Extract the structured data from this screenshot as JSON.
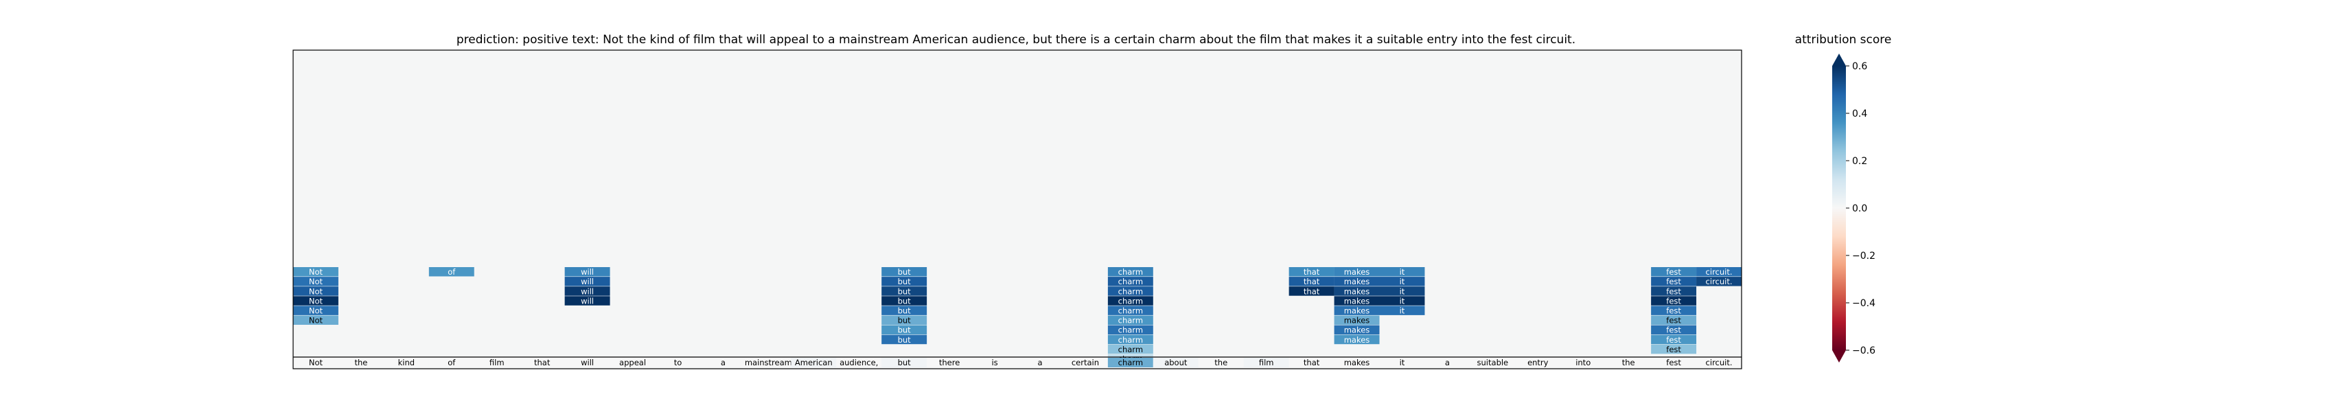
{
  "chart_data": {
    "type": "heatmap",
    "title": "prediction:  positive     text:  Not the kind of film that will appeal to a mainstream American audience, but there is a certain charm about the film that makes it a suitable entry into the fest circuit.",
    "tokens": [
      "Not",
      "the",
      "kind",
      "of",
      "film",
      "that",
      "will",
      "appeal",
      "to",
      "a",
      "mainstream",
      "American",
      "audience,",
      "but",
      "there",
      "is",
      "a",
      "certain",
      "charm",
      "about",
      "the",
      "film",
      "that",
      "makes",
      "it",
      "a",
      "suitable",
      "entry",
      "into",
      "the",
      "fest",
      "circuit."
    ],
    "n_rows": 12,
    "bottom_row_scores": [
      0.0,
      0.0,
      0.0,
      0.0,
      0.0,
      0.0,
      0.0,
      0.0,
      0.0,
      0.0,
      0.0,
      0.02,
      0.0,
      0.02,
      0.0,
      0.0,
      0.0,
      0.0,
      0.3,
      0.02,
      0.0,
      0.02,
      0.0,
      0.0,
      0.0,
      0.0,
      0.0,
      0.0,
      0.0,
      0.0,
      0.0,
      0.0
    ],
    "highlighted_cells": [
      {
        "token": "Not",
        "col": 0,
        "row": 0,
        "score": 0.35
      },
      {
        "token": "Not",
        "col": 0,
        "row": 1,
        "score": 0.45
      },
      {
        "token": "Not",
        "col": 0,
        "row": 2,
        "score": 0.5
      },
      {
        "token": "Not",
        "col": 0,
        "row": 3,
        "score": 0.62
      },
      {
        "token": "Not",
        "col": 0,
        "row": 4,
        "score": 0.45
      },
      {
        "token": "Not",
        "col": 0,
        "row": 5,
        "score": 0.3
      },
      {
        "token": "of",
        "col": 3,
        "row": 0,
        "score": 0.35
      },
      {
        "token": "will",
        "col": 6,
        "row": 0,
        "score": 0.4
      },
      {
        "token": "will",
        "col": 6,
        "row": 1,
        "score": 0.5
      },
      {
        "token": "will",
        "col": 6,
        "row": 2,
        "score": 0.58
      },
      {
        "token": "will",
        "col": 6,
        "row": 3,
        "score": 0.62
      },
      {
        "token": "but",
        "col": 13,
        "row": 0,
        "score": 0.4
      },
      {
        "token": "but",
        "col": 13,
        "row": 1,
        "score": 0.5
      },
      {
        "token": "but",
        "col": 13,
        "row": 2,
        "score": 0.55
      },
      {
        "token": "but",
        "col": 13,
        "row": 3,
        "score": 0.62
      },
      {
        "token": "but",
        "col": 13,
        "row": 4,
        "score": 0.45
      },
      {
        "token": "but",
        "col": 13,
        "row": 5,
        "score": 0.3
      },
      {
        "token": "but",
        "col": 13,
        "row": 6,
        "score": 0.35
      },
      {
        "token": "but",
        "col": 13,
        "row": 7,
        "score": 0.45
      },
      {
        "token": "charm",
        "col": 18,
        "row": 0,
        "score": 0.4
      },
      {
        "token": "charm",
        "col": 18,
        "row": 1,
        "score": 0.5
      },
      {
        "token": "charm",
        "col": 18,
        "row": 2,
        "score": 0.5
      },
      {
        "token": "charm",
        "col": 18,
        "row": 3,
        "score": 0.62
      },
      {
        "token": "charm",
        "col": 18,
        "row": 4,
        "score": 0.45
      },
      {
        "token": "charm",
        "col": 18,
        "row": 5,
        "score": 0.35
      },
      {
        "token": "charm",
        "col": 18,
        "row": 6,
        "score": 0.45
      },
      {
        "token": "charm",
        "col": 18,
        "row": 7,
        "score": 0.35
      },
      {
        "token": "charm",
        "col": 18,
        "row": 8,
        "score": 0.25
      },
      {
        "token": "charm",
        "col": 18,
        "row": 9,
        "score": 0.15
      },
      {
        "token": "that",
        "col": 22,
        "row": 0,
        "score": 0.38
      },
      {
        "token": "that",
        "col": 22,
        "row": 1,
        "score": 0.5
      },
      {
        "token": "that",
        "col": 22,
        "row": 2,
        "score": 0.62
      },
      {
        "token": "makes",
        "col": 23,
        "row": 0,
        "score": 0.4
      },
      {
        "token": "makes",
        "col": 23,
        "row": 1,
        "score": 0.5
      },
      {
        "token": "makes",
        "col": 23,
        "row": 2,
        "score": 0.55
      },
      {
        "token": "makes",
        "col": 23,
        "row": 3,
        "score": 0.62
      },
      {
        "token": "makes",
        "col": 23,
        "row": 4,
        "score": 0.45
      },
      {
        "token": "makes",
        "col": 23,
        "row": 5,
        "score": 0.3
      },
      {
        "token": "makes",
        "col": 23,
        "row": 6,
        "score": 0.45
      },
      {
        "token": "makes",
        "col": 23,
        "row": 7,
        "score": 0.35
      },
      {
        "token": "it",
        "col": 24,
        "row": 0,
        "score": 0.4
      },
      {
        "token": "it",
        "col": 24,
        "row": 1,
        "score": 0.5
      },
      {
        "token": "it",
        "col": 24,
        "row": 2,
        "score": 0.55
      },
      {
        "token": "it",
        "col": 24,
        "row": 3,
        "score": 0.62
      },
      {
        "token": "it",
        "col": 24,
        "row": 4,
        "score": 0.45
      },
      {
        "token": "fest",
        "col": 30,
        "row": 0,
        "score": 0.4
      },
      {
        "token": "fest",
        "col": 30,
        "row": 1,
        "score": 0.5
      },
      {
        "token": "fest",
        "col": 30,
        "row": 2,
        "score": 0.55
      },
      {
        "token": "fest",
        "col": 30,
        "row": 3,
        "score": 0.62
      },
      {
        "token": "fest",
        "col": 30,
        "row": 4,
        "score": 0.45
      },
      {
        "token": "fest",
        "col": 30,
        "row": 5,
        "score": 0.3
      },
      {
        "token": "fest",
        "col": 30,
        "row": 6,
        "score": 0.45
      },
      {
        "token": "fest",
        "col": 30,
        "row": 7,
        "score": 0.35
      },
      {
        "token": "fest",
        "col": 30,
        "row": 8,
        "score": 0.25
      },
      {
        "token": "circuit.",
        "col": 31,
        "row": 0,
        "score": 0.45
      },
      {
        "token": "circuit.",
        "col": 31,
        "row": 1,
        "score": 0.55
      }
    ],
    "colorbar": {
      "title": "attribution score",
      "range": [
        -0.6,
        0.6
      ],
      "ticks": [
        -0.6,
        -0.4,
        -0.2,
        0.0,
        0.2,
        0.4,
        0.6
      ],
      "tick_labels": [
        "−0.6",
        "−0.4",
        "−0.2",
        "0.0",
        "0.2",
        "0.4",
        "0.6"
      ],
      "colormap": "RdBu",
      "color_stops": [
        "#67001f",
        "#b2182b",
        "#d6604d",
        "#f4a582",
        "#fddbc7",
        "#f7f7f7",
        "#d1e5f0",
        "#92c5de",
        "#4393c3",
        "#2166ac",
        "#053061"
      ],
      "extend": "both"
    },
    "background_color": "#f5f6f6"
  }
}
